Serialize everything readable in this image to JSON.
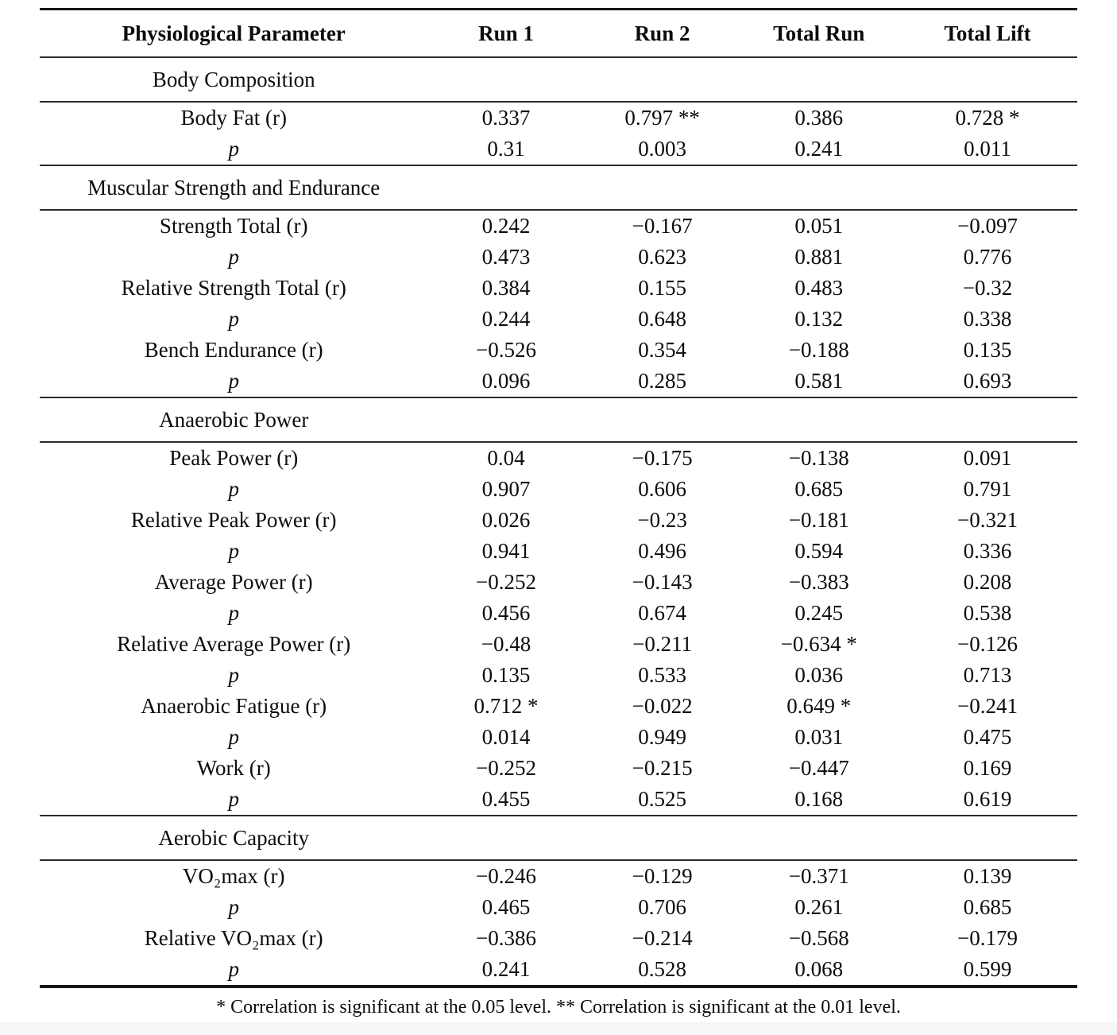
{
  "table": {
    "columns": [
      "Physiological Parameter",
      "Run 1",
      "Run 2",
      "Total Run",
      "Total Lift"
    ],
    "p_row_label": "p",
    "sections": [
      {
        "title": "Body Composition",
        "rows": [
          {
            "param": "Body Fat (r)",
            "r": [
              "0.337",
              "0.797 **",
              "0.386",
              "0.728 *"
            ],
            "p": [
              "0.31",
              "0.003",
              "0.241",
              "0.011"
            ]
          }
        ]
      },
      {
        "title": "Muscular Strength and Endurance",
        "rows": [
          {
            "param": "Strength Total (r)",
            "r": [
              "0.242",
              "−0.167",
              "0.051",
              "−0.097"
            ],
            "p": [
              "0.473",
              "0.623",
              "0.881",
              "0.776"
            ]
          },
          {
            "param": "Relative Strength Total (r)",
            "r": [
              "0.384",
              "0.155",
              "0.483",
              "−0.32"
            ],
            "p": [
              "0.244",
              "0.648",
              "0.132",
              "0.338"
            ]
          },
          {
            "param": "Bench Endurance (r)",
            "r": [
              "−0.526",
              "0.354",
              "−0.188",
              "0.135"
            ],
            "p": [
              "0.096",
              "0.285",
              "0.581",
              "0.693"
            ]
          }
        ]
      },
      {
        "title": "Anaerobic Power",
        "rows": [
          {
            "param": "Peak Power (r)",
            "r": [
              "0.04",
              "−0.175",
              "−0.138",
              "0.091"
            ],
            "p": [
              "0.907",
              "0.606",
              "0.685",
              "0.791"
            ]
          },
          {
            "param": "Relative Peak Power (r)",
            "r": [
              "0.026",
              "−0.23",
              "−0.181",
              "−0.321"
            ],
            "p": [
              "0.941",
              "0.496",
              "0.594",
              "0.336"
            ]
          },
          {
            "param": "Average Power (r)",
            "r": [
              "−0.252",
              "−0.143",
              "−0.383",
              "0.208"
            ],
            "p": [
              "0.456",
              "0.674",
              "0.245",
              "0.538"
            ]
          },
          {
            "param": "Relative Average Power (r)",
            "r": [
              "−0.48",
              "−0.211",
              "−0.634 *",
              "−0.126"
            ],
            "p": [
              "0.135",
              "0.533",
              "0.036",
              "0.713"
            ]
          },
          {
            "param": "Anaerobic Fatigue (r)",
            "r": [
              "0.712 *",
              "−0.022",
              "0.649 *",
              "−0.241"
            ],
            "p": [
              "0.014",
              "0.949",
              "0.031",
              "0.475"
            ]
          },
          {
            "param": "Work (r)",
            "r": [
              "−0.252",
              "−0.215",
              "−0.447",
              "0.169"
            ],
            "p": [
              "0.455",
              "0.525",
              "0.168",
              "0.619"
            ]
          }
        ]
      },
      {
        "title": "Aerobic Capacity",
        "rows": [
          {
            "param": "VO₂max (r)",
            "r": [
              "−0.246",
              "−0.129",
              "−0.371",
              "0.139"
            ],
            "p": [
              "0.465",
              "0.706",
              "0.261",
              "0.685"
            ]
          },
          {
            "param": "Relative VO₂max (r)",
            "r": [
              "−0.386",
              "−0.214",
              "−0.568",
              "−0.179"
            ],
            "p": [
              "0.241",
              "0.528",
              "0.068",
              "0.599"
            ]
          }
        ]
      }
    ],
    "footnote": "* Correlation is significant at the 0.05 level. ** Correlation is significant at the 0.01 level."
  }
}
